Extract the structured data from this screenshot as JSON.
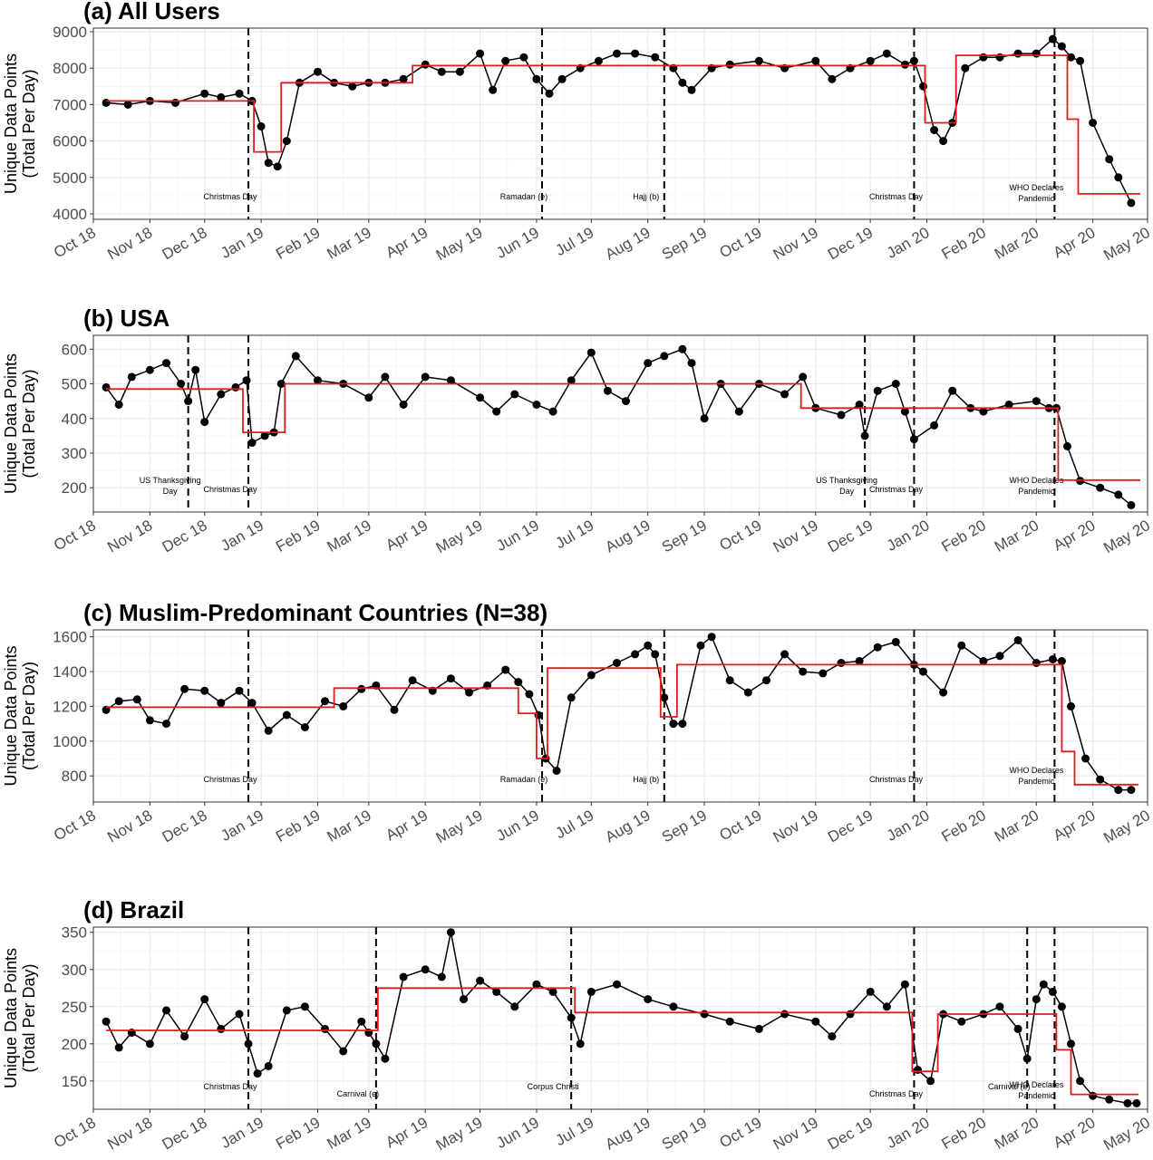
{
  "figure": {
    "x_tick_labels": [
      "Oct 18",
      "Nov 18",
      "Dec 18",
      "Jan 19",
      "Feb 19",
      "Mar 19",
      "Apr 19",
      "May 19",
      "Jun 19",
      "Jul 19",
      "Aug 19",
      "Sep 19",
      "Oct 19",
      "Nov 19",
      "Dec 19",
      "Jan 20",
      "Feb 20",
      "Mar 20",
      "Apr 20",
      "May 20"
    ],
    "y_label_line1": "Unique Data Points",
    "y_label_line2": "(Total Per Day)"
  },
  "chart_data": [
    {
      "type": "line",
      "title": "(a) All Users",
      "ylabel": "Unique Data Points (Total Per Day)",
      "xlabel": "",
      "x_range": [
        "2018-10-01",
        "2020-05-01"
      ],
      "ylim": [
        3850,
        9100
      ],
      "y_ticks": [
        4000,
        5000,
        6000,
        7000,
        8000,
        9000
      ],
      "grid": true,
      "series": [
        {
          "x": [
            "2018-10-08",
            "2018-10-20",
            "2018-11-01",
            "2018-11-15",
            "2018-12-01",
            "2018-12-10",
            "2018-12-20",
            "2018-12-27",
            "2019-01-01",
            "2019-01-05",
            "2019-01-10",
            "2019-01-15",
            "2019-01-22",
            "2019-02-01",
            "2019-02-10",
            "2019-02-20",
            "2019-03-01",
            "2019-03-10",
            "2019-03-20",
            "2019-04-01",
            "2019-04-10",
            "2019-04-20",
            "2019-05-01",
            "2019-05-08",
            "2019-05-15",
            "2019-05-25",
            "2019-06-01",
            "2019-06-08",
            "2019-06-15",
            "2019-06-25",
            "2019-07-05",
            "2019-07-15",
            "2019-07-25",
            "2019-08-05",
            "2019-08-15",
            "2019-08-20",
            "2019-08-25",
            "2019-09-05",
            "2019-09-15",
            "2019-10-01",
            "2019-10-15",
            "2019-11-01",
            "2019-11-10",
            "2019-11-20",
            "2019-12-01",
            "2019-12-10",
            "2019-12-20",
            "2019-12-25",
            "2019-12-30",
            "2020-01-05",
            "2020-01-10",
            "2020-01-15",
            "2020-01-22",
            "2020-02-01",
            "2020-02-10",
            "2020-02-20",
            "2020-03-01",
            "2020-03-10",
            "2020-03-15",
            "2020-03-20",
            "2020-03-25",
            "2020-04-01",
            "2020-04-10",
            "2020-04-15",
            "2020-04-22"
          ],
          "y": [
            7050,
            7000,
            7100,
            7050,
            7300,
            7200,
            7300,
            7100,
            6400,
            5400,
            5300,
            6000,
            7600,
            7900,
            7600,
            7500,
            7600,
            7600,
            7700,
            8100,
            7900,
            7900,
            8400,
            7400,
            8200,
            8300,
            7700,
            7300,
            7700,
            8000,
            8200,
            8400,
            8400,
            8300,
            8000,
            7600,
            7400,
            8000,
            8100,
            8200,
            8000,
            8200,
            7700,
            8000,
            8200,
            8400,
            8100,
            8200,
            7500,
            6300,
            6000,
            6500,
            8000,
            8300,
            8300,
            8400,
            8400,
            8800,
            8600,
            8300,
            8200,
            6500,
            5500,
            5000,
            4300
          ]
        }
      ],
      "step_segments": [
        {
          "x0": "2018-10-08",
          "x1": "2018-12-28",
          "y": 7100
        },
        {
          "x0": "2018-12-28",
          "x1": "2019-01-12",
          "y": 5700
        },
        {
          "x0": "2019-01-12",
          "x1": "2019-03-25",
          "y": 7600
        },
        {
          "x0": "2019-03-25",
          "x1": "2019-12-31",
          "y": 8070
        },
        {
          "x0": "2019-12-31",
          "x1": "2020-01-17",
          "y": 6500
        },
        {
          "x0": "2020-01-17",
          "x1": "2020-03-18",
          "y": 8350
        },
        {
          "x0": "2020-03-18",
          "x1": "2020-03-24",
          "y": 6600
        },
        {
          "x0": "2020-03-24",
          "x1": "2020-04-27",
          "y": 4550
        }
      ],
      "events": [
        {
          "date": "2018-12-25",
          "label": "Christmas Day"
        },
        {
          "date": "2019-06-04",
          "label": "Ramadan (e)"
        },
        {
          "date": "2019-08-10",
          "label": "Hajj (b)"
        },
        {
          "date": "2019-12-25",
          "label": "Christmas Day"
        },
        {
          "date": "2020-03-11",
          "label": "WHO Declares Pandemic"
        }
      ]
    },
    {
      "type": "line",
      "title": "(b) USA",
      "ylabel": "Unique Data Points (Total Per Day)",
      "xlabel": "",
      "x_range": [
        "2018-10-01",
        "2020-05-01"
      ],
      "ylim": [
        130,
        640
      ],
      "y_ticks": [
        200,
        300,
        400,
        500,
        600
      ],
      "grid": true,
      "series": [
        {
          "x": [
            "2018-10-08",
            "2018-10-15",
            "2018-10-22",
            "2018-11-01",
            "2018-11-10",
            "2018-11-18",
            "2018-11-22",
            "2018-11-26",
            "2018-12-01",
            "2018-12-10",
            "2018-12-18",
            "2018-12-24",
            "2018-12-27",
            "2019-01-03",
            "2019-01-08",
            "2019-01-12",
            "2019-01-20",
            "2019-02-01",
            "2019-02-15",
            "2019-03-01",
            "2019-03-10",
            "2019-03-20",
            "2019-04-01",
            "2019-04-15",
            "2019-05-01",
            "2019-05-10",
            "2019-05-20",
            "2019-06-01",
            "2019-06-10",
            "2019-06-20",
            "2019-07-01",
            "2019-07-10",
            "2019-07-20",
            "2019-08-01",
            "2019-08-10",
            "2019-08-20",
            "2019-08-25",
            "2019-09-01",
            "2019-09-10",
            "2019-09-20",
            "2019-10-01",
            "2019-10-15",
            "2019-10-25",
            "2019-11-01",
            "2019-11-15",
            "2019-11-25",
            "2019-11-28",
            "2019-12-05",
            "2019-12-15",
            "2019-12-20",
            "2019-12-25",
            "2020-01-05",
            "2020-01-15",
            "2020-01-25",
            "2020-02-01",
            "2020-02-15",
            "2020-03-01",
            "2020-03-08",
            "2020-03-12",
            "2020-03-18",
            "2020-03-25",
            "2020-04-05",
            "2020-04-15",
            "2020-04-22"
          ],
          "y": [
            490,
            440,
            520,
            540,
            560,
            500,
            450,
            540,
            390,
            470,
            490,
            510,
            330,
            350,
            360,
            500,
            580,
            510,
            500,
            460,
            520,
            440,
            520,
            510,
            460,
            420,
            470,
            440,
            420,
            510,
            590,
            480,
            450,
            560,
            580,
            600,
            560,
            400,
            500,
            420,
            500,
            470,
            520,
            430,
            410,
            440,
            350,
            480,
            500,
            420,
            340,
            380,
            480,
            430,
            420,
            440,
            450,
            430,
            430,
            320,
            220,
            200,
            180,
            150
          ]
        }
      ],
      "step_segments": [
        {
          "x0": "2018-10-08",
          "x1": "2018-12-22",
          "y": 485
        },
        {
          "x0": "2018-12-22",
          "x1": "2019-01-14",
          "y": 360
        },
        {
          "x0": "2019-01-14",
          "x1": "2019-10-24",
          "y": 500
        },
        {
          "x0": "2019-10-24",
          "x1": "2020-03-13",
          "y": 430
        },
        {
          "x0": "2020-03-13",
          "x1": "2020-04-27",
          "y": 222
        }
      ],
      "events": [
        {
          "date": "2018-11-22",
          "label": "US Thanksgiving Day"
        },
        {
          "date": "2018-12-25",
          "label": "Christmas Day"
        },
        {
          "date": "2019-11-28",
          "label": "US Thanksgiving Day"
        },
        {
          "date": "2019-12-25",
          "label": "Christmas Day"
        },
        {
          "date": "2020-03-11",
          "label": "WHO Declares Pandemic"
        }
      ]
    },
    {
      "type": "line",
      "title": "(c) Muslim-Predominant Countries (N=38)",
      "ylabel": "Unique Data Points (Total Per Day)",
      "xlabel": "",
      "x_range": [
        "2018-10-01",
        "2020-05-01"
      ],
      "ylim": [
        650,
        1640
      ],
      "y_ticks": [
        800,
        1000,
        1200,
        1400,
        1600
      ],
      "grid": true,
      "series": [
        {
          "x": [
            "2018-10-08",
            "2018-10-15",
            "2018-10-25",
            "2018-11-01",
            "2018-11-10",
            "2018-11-20",
            "2018-12-01",
            "2018-12-10",
            "2018-12-20",
            "2018-12-27",
            "2019-01-05",
            "2019-01-15",
            "2019-01-25",
            "2019-02-05",
            "2019-02-15",
            "2019-02-25",
            "2019-03-05",
            "2019-03-15",
            "2019-03-25",
            "2019-04-05",
            "2019-04-15",
            "2019-04-25",
            "2019-05-05",
            "2019-05-15",
            "2019-05-22",
            "2019-05-28",
            "2019-06-02",
            "2019-06-06",
            "2019-06-12",
            "2019-06-20",
            "2019-07-01",
            "2019-07-15",
            "2019-07-25",
            "2019-08-01",
            "2019-08-05",
            "2019-08-10",
            "2019-08-15",
            "2019-08-20",
            "2019-08-30",
            "2019-09-05",
            "2019-09-15",
            "2019-09-25",
            "2019-10-05",
            "2019-10-15",
            "2019-10-25",
            "2019-11-05",
            "2019-11-15",
            "2019-11-25",
            "2019-12-05",
            "2019-12-15",
            "2019-12-25",
            "2019-12-30",
            "2020-01-10",
            "2020-01-20",
            "2020-02-01",
            "2020-02-10",
            "2020-02-20",
            "2020-03-01",
            "2020-03-10",
            "2020-03-15",
            "2020-03-20",
            "2020-03-28",
            "2020-04-05",
            "2020-04-15",
            "2020-04-22"
          ],
          "y": [
            1180,
            1230,
            1240,
            1120,
            1100,
            1300,
            1290,
            1220,
            1290,
            1220,
            1060,
            1150,
            1080,
            1230,
            1200,
            1300,
            1320,
            1180,
            1350,
            1290,
            1360,
            1280,
            1320,
            1410,
            1340,
            1270,
            1150,
            900,
            830,
            1250,
            1380,
            1450,
            1500,
            1550,
            1500,
            1250,
            1100,
            1100,
            1550,
            1600,
            1350,
            1280,
            1350,
            1500,
            1400,
            1390,
            1450,
            1460,
            1540,
            1570,
            1440,
            1400,
            1280,
            1550,
            1460,
            1490,
            1580,
            1450,
            1470,
            1460,
            1200,
            900,
            780,
            720,
            720
          ]
        }
      ],
      "step_segments": [
        {
          "x0": "2018-10-08",
          "x1": "2019-02-10",
          "y": 1195
        },
        {
          "x0": "2019-02-10",
          "x1": "2019-05-22",
          "y": 1305
        },
        {
          "x0": "2019-05-22",
          "x1": "2019-06-01",
          "y": 1160
        },
        {
          "x0": "2019-06-01",
          "x1": "2019-06-07",
          "y": 900
        },
        {
          "x0": "2019-06-07",
          "x1": "2019-08-08",
          "y": 1420
        },
        {
          "x0": "2019-08-08",
          "x1": "2019-08-17",
          "y": 1140
        },
        {
          "x0": "2019-08-17",
          "x1": "2020-03-15",
          "y": 1440
        },
        {
          "x0": "2020-03-15",
          "x1": "2020-03-22",
          "y": 940
        },
        {
          "x0": "2020-03-22",
          "x1": "2020-04-26",
          "y": 750
        }
      ],
      "events": [
        {
          "date": "2018-12-25",
          "label": "Christmas Day"
        },
        {
          "date": "2019-06-04",
          "label": "Ramadan (e)"
        },
        {
          "date": "2019-08-10",
          "label": "Hajj (b)"
        },
        {
          "date": "2019-12-25",
          "label": "Christmas Day"
        },
        {
          "date": "2020-03-11",
          "label": "WHO Declares Pandemic"
        }
      ]
    },
    {
      "type": "line",
      "title": "(d) Brazil",
      "ylabel": "Unique Data Points (Total Per Day)",
      "xlabel": "",
      "x_range": [
        "2018-10-01",
        "2020-05-01"
      ],
      "ylim": [
        112,
        357
      ],
      "y_ticks": [
        150,
        200,
        250,
        300,
        350
      ],
      "grid": true,
      "series": [
        {
          "x": [
            "2018-10-08",
            "2018-10-15",
            "2018-10-22",
            "2018-11-01",
            "2018-11-10",
            "2018-11-20",
            "2018-12-01",
            "2018-12-10",
            "2018-12-20",
            "2018-12-25",
            "2018-12-30",
            "2019-01-05",
            "2019-01-15",
            "2019-01-25",
            "2019-02-05",
            "2019-02-15",
            "2019-02-25",
            "2019-03-01",
            "2019-03-05",
            "2019-03-10",
            "2019-03-20",
            "2019-04-01",
            "2019-04-10",
            "2019-04-15",
            "2019-04-22",
            "2019-05-01",
            "2019-05-10",
            "2019-05-20",
            "2019-06-01",
            "2019-06-10",
            "2019-06-20",
            "2019-06-25",
            "2019-07-01",
            "2019-07-15",
            "2019-08-01",
            "2019-08-15",
            "2019-09-01",
            "2019-09-15",
            "2019-10-01",
            "2019-10-15",
            "2019-11-01",
            "2019-11-10",
            "2019-11-20",
            "2019-12-01",
            "2019-12-10",
            "2019-12-20",
            "2019-12-27",
            "2020-01-03",
            "2020-01-10",
            "2020-01-20",
            "2020-02-01",
            "2020-02-10",
            "2020-02-20",
            "2020-02-25",
            "2020-03-01",
            "2020-03-05",
            "2020-03-10",
            "2020-03-15",
            "2020-03-20",
            "2020-03-25",
            "2020-04-01",
            "2020-04-10",
            "2020-04-20",
            "2020-04-25"
          ],
          "y": [
            230,
            195,
            215,
            200,
            245,
            210,
            260,
            220,
            240,
            200,
            160,
            170,
            245,
            250,
            220,
            190,
            230,
            215,
            200,
            180,
            290,
            300,
            290,
            350,
            260,
            285,
            270,
            250,
            280,
            270,
            235,
            200,
            270,
            280,
            260,
            250,
            240,
            230,
            220,
            240,
            230,
            210,
            240,
            270,
            250,
            280,
            165,
            150,
            240,
            230,
            240,
            250,
            220,
            180,
            260,
            280,
            270,
            250,
            200,
            150,
            130,
            125,
            120,
            120
          ]
        }
      ],
      "step_segments": [
        {
          "x0": "2018-10-08",
          "x1": "2019-03-06",
          "y": 218
        },
        {
          "x0": "2019-03-06",
          "x1": "2019-06-22",
          "y": 275
        },
        {
          "x0": "2019-06-22",
          "x1": "2019-12-24",
          "y": 242
        },
        {
          "x0": "2019-12-24",
          "x1": "2020-01-07",
          "y": 163
        },
        {
          "x0": "2020-01-07",
          "x1": "2020-03-12",
          "y": 240
        },
        {
          "x0": "2020-03-12",
          "x1": "2020-03-20",
          "y": 192
        },
        {
          "x0": "2020-03-20",
          "x1": "2020-04-26",
          "y": 132
        }
      ],
      "events": [
        {
          "date": "2018-12-25",
          "label": "Christmas Day"
        },
        {
          "date": "2019-03-05",
          "label": "Carnival (e)"
        },
        {
          "date": "2019-06-20",
          "label": "Corpus Christi"
        },
        {
          "date": "2019-12-25",
          "label": "Christmas Day"
        },
        {
          "date": "2020-02-25",
          "label": "Carnival (e)"
        },
        {
          "date": "2020-03-11",
          "label": "WHO Declares Pandemic"
        }
      ]
    }
  ]
}
